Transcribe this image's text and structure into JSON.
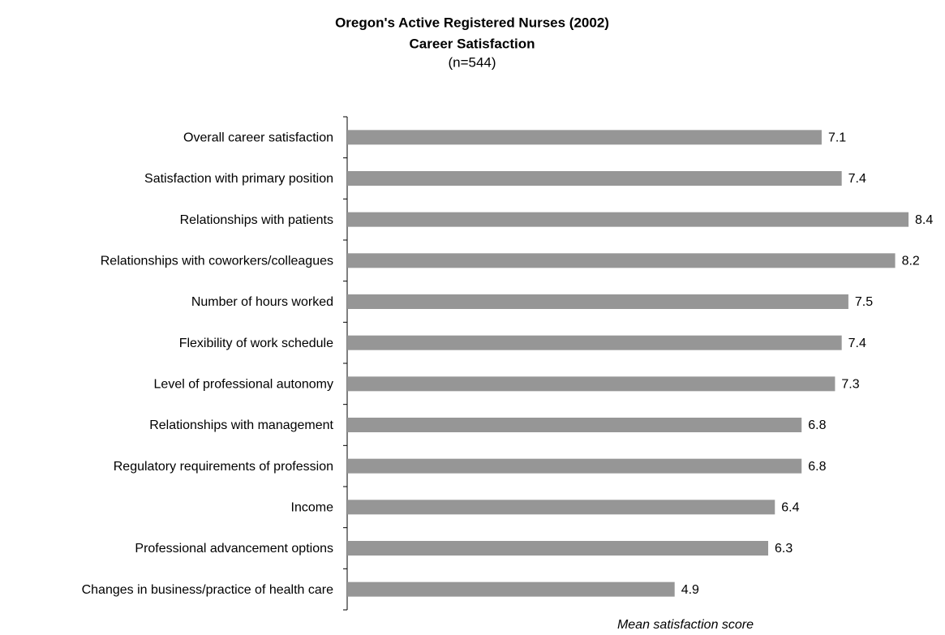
{
  "chart_data": {
    "type": "hbar",
    "title": "Oregon's Active Registered Nurses (2002)",
    "subtitle": "Career Satisfaction",
    "note": "(n=544)",
    "x_label": "Mean satisfaction score",
    "categories": [
      "Overall career satisfaction",
      "Satisfaction with primary position",
      "Relationships with patients",
      "Relationships with coworkers/colleagues",
      "Number of hours worked",
      "Flexibility of work schedule",
      "Level of professional autonomy",
      "Relationships with management",
      "Regulatory requirements of profession",
      "Income",
      "Professional advancement options",
      "Changes in business/practice of health care"
    ],
    "values": [
      7.1,
      7.4,
      8.4,
      8.2,
      7.5,
      7.4,
      7.3,
      6.8,
      6.8,
      6.4,
      6.3,
      4.9
    ],
    "color": "#969696",
    "xlim": [
      0,
      8.8
    ]
  }
}
